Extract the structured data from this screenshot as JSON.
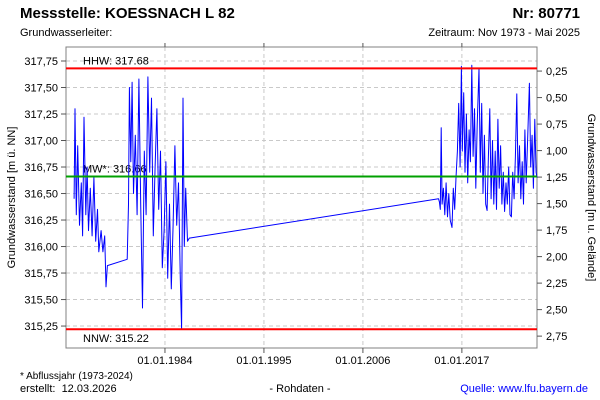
{
  "header": {
    "title": "Messstelle: KOESSNACH L 82",
    "number": "Nr: 80771",
    "aquifer_label": "Grundwasserleiter:",
    "period": "Zeitraum: Nov 1973 - Mai 2025"
  },
  "footer": {
    "footnote": "* Abflussjahr (1973-2024)",
    "created": "erstellt:  12.03.2026",
    "center": "- Rohdaten -",
    "source_label": "Quelle: ",
    "source_url": "www.lfu.bayern.de"
  },
  "chart_data": {
    "type": "line",
    "ylabel_left": "Grundwasserstand [m ü. NN]",
    "ylabel_right": "Grundwasserstand [m u. Gelände]",
    "x_range": [
      1973.0,
      2025.35
    ],
    "y_range_left": [
      315.043,
      317.882
    ],
    "ground_elevation": 317.905,
    "grid": true,
    "colors": {
      "grid": "#c9c9c9",
      "frame": "#808080",
      "tick": "#555555",
      "series": "#0000ff",
      "hhw_nnw": "#ff0000",
      "mw": "#00a000",
      "link": "#0000ff"
    },
    "x_ticks": [
      {
        "year": 1984,
        "label": "01.01.1984"
      },
      {
        "year": 1995,
        "label": "01.01.1995"
      },
      {
        "year": 2006,
        "label": "01.01.2006"
      },
      {
        "year": 2017,
        "label": "01.01.2017"
      }
    ],
    "y_ticks_left": [
      {
        "value": 317.75,
        "label": "317,75"
      },
      {
        "value": 317.5,
        "label": "317,50"
      },
      {
        "value": 317.25,
        "label": "317,25"
      },
      {
        "value": 317.0,
        "label": "317,00"
      },
      {
        "value": 316.75,
        "label": "316,75"
      },
      {
        "value": 316.5,
        "label": "316,50"
      },
      {
        "value": 316.25,
        "label": "316,25"
      },
      {
        "value": 316.0,
        "label": "316,00"
      },
      {
        "value": 315.75,
        "label": "315,75"
      },
      {
        "value": 315.5,
        "label": "315,50"
      },
      {
        "value": 315.25,
        "label": "315,25"
      }
    ],
    "y_ticks_right": [
      {
        "depth": 0.25,
        "label": "0,25"
      },
      {
        "depth": 0.5,
        "label": "0,50"
      },
      {
        "depth": 0.75,
        "label": "0,75"
      },
      {
        "depth": 1.0,
        "label": "1,00"
      },
      {
        "depth": 1.25,
        "label": "1,25"
      },
      {
        "depth": 1.5,
        "label": "1,50"
      },
      {
        "depth": 1.75,
        "label": "1,75"
      },
      {
        "depth": 2.0,
        "label": "2,00"
      },
      {
        "depth": 2.25,
        "label": "2,25"
      },
      {
        "depth": 2.5,
        "label": "2,50"
      },
      {
        "depth": 2.75,
        "label": "2,75"
      }
    ],
    "reference_lines": [
      {
        "name": "HHW",
        "label": "HHW: 317.68",
        "value": 317.68,
        "color": "#ff0000",
        "label_position": "above"
      },
      {
        "name": "MW",
        "label": "MW*: 316.66",
        "value": 316.66,
        "color": "#00a000",
        "label_position": "above"
      },
      {
        "name": "NNW",
        "label": "NNW: 315.22",
        "value": 315.22,
        "color": "#ff0000",
        "label_position": "below"
      }
    ],
    "series": [
      {
        "name": "Grundwasserstand Rohdaten",
        "color": "#0000ff",
        "points": [
          [
            1973.9,
            316.45
          ],
          [
            1974.0,
            317.3
          ],
          [
            1974.15,
            316.3
          ],
          [
            1974.3,
            316.95
          ],
          [
            1974.5,
            316.2
          ],
          [
            1974.7,
            316.6
          ],
          [
            1974.85,
            316.1
          ],
          [
            1975.0,
            317.22
          ],
          [
            1975.2,
            316.3
          ],
          [
            1975.35,
            316.75
          ],
          [
            1975.5,
            316.15
          ],
          [
            1975.7,
            316.55
          ],
          [
            1975.9,
            316.1
          ],
          [
            1976.1,
            316.65
          ],
          [
            1976.3,
            316.05
          ],
          [
            1976.5,
            316.35
          ],
          [
            1976.65,
            315.95
          ],
          [
            1976.9,
            316.15
          ],
          [
            1977.1,
            315.95
          ],
          [
            1977.3,
            316.1
          ],
          [
            1977.45,
            315.62
          ],
          [
            1977.6,
            315.82
          ],
          [
            1979.8,
            315.88
          ],
          [
            1979.95,
            316.4
          ],
          [
            1980.05,
            317.5
          ],
          [
            1980.2,
            316.8
          ],
          [
            1980.35,
            317.55
          ],
          [
            1980.5,
            316.5
          ],
          [
            1980.7,
            317.05
          ],
          [
            1980.9,
            316.3
          ],
          [
            1981.1,
            317.58
          ],
          [
            1981.3,
            316.4
          ],
          [
            1981.5,
            315.42
          ],
          [
            1981.7,
            316.9
          ],
          [
            1981.9,
            316.3
          ],
          [
            1982.1,
            317.6
          ],
          [
            1982.3,
            316.7
          ],
          [
            1982.5,
            317.4
          ],
          [
            1982.7,
            316.1
          ],
          [
            1982.9,
            316.75
          ],
          [
            1983.1,
            317.3
          ],
          [
            1983.3,
            316.35
          ],
          [
            1983.5,
            316.9
          ],
          [
            1983.7,
            315.8
          ],
          [
            1983.9,
            316.15
          ],
          [
            1984.1,
            316.8
          ],
          [
            1984.3,
            315.7
          ],
          [
            1984.5,
            316.4
          ],
          [
            1984.7,
            315.6
          ],
          [
            1984.9,
            316.2
          ],
          [
            1985.1,
            316.95
          ],
          [
            1985.3,
            316.2
          ],
          [
            1985.5,
            316.6
          ],
          [
            1985.7,
            315.7
          ],
          [
            1985.85,
            315.22
          ],
          [
            1986.0,
            317.4
          ],
          [
            1986.15,
            316.0
          ],
          [
            1986.3,
            316.55
          ],
          [
            1986.5,
            316.05
          ],
          [
            1986.7,
            316.08
          ],
          [
            2014.4,
            316.45
          ],
          [
            2014.5,
            316.42
          ],
          [
            2014.6,
            316.35
          ],
          [
            2014.7,
            317.12
          ],
          [
            2014.8,
            316.4
          ],
          [
            2014.95,
            316.55
          ],
          [
            2015.1,
            316.3
          ],
          [
            2015.25,
            316.6
          ],
          [
            2015.4,
            316.28
          ],
          [
            2015.55,
            316.5
          ],
          [
            2015.7,
            316.25
          ],
          [
            2015.9,
            316.18
          ],
          [
            2016.05,
            316.55
          ],
          [
            2016.2,
            316.35
          ],
          [
            2016.35,
            316.65
          ],
          [
            2016.5,
            316.9
          ],
          [
            2016.65,
            317.35
          ],
          [
            2016.8,
            316.75
          ],
          [
            2016.95,
            317.7
          ],
          [
            2017.05,
            316.9
          ],
          [
            2017.2,
            317.45
          ],
          [
            2017.35,
            316.7
          ],
          [
            2017.5,
            317.25
          ],
          [
            2017.65,
            316.6
          ],
          [
            2017.8,
            317.1
          ],
          [
            2017.95,
            316.8
          ],
          [
            2018.1,
            317.71
          ],
          [
            2018.25,
            316.85
          ],
          [
            2018.4,
            317.3
          ],
          [
            2018.55,
            316.55
          ],
          [
            2018.7,
            317.15
          ],
          [
            2018.9,
            317.68
          ],
          [
            2019.05,
            316.7
          ],
          [
            2019.2,
            317.35
          ],
          [
            2019.35,
            316.5
          ],
          [
            2019.5,
            317.05
          ],
          [
            2019.65,
            316.4
          ],
          [
            2019.8,
            316.34
          ],
          [
            2019.95,
            316.85
          ],
          [
            2020.1,
            317.3
          ],
          [
            2020.25,
            316.45
          ],
          [
            2020.4,
            317.0
          ],
          [
            2020.55,
            316.4
          ],
          [
            2020.7,
            316.9
          ],
          [
            2020.85,
            316.35
          ],
          [
            2021.0,
            317.2
          ],
          [
            2021.15,
            316.55
          ],
          [
            2021.3,
            316.95
          ],
          [
            2021.45,
            316.4
          ],
          [
            2021.6,
            316.7
          ],
          [
            2021.75,
            316.33
          ],
          [
            2021.9,
            316.6
          ],
          [
            2022.05,
            316.4
          ],
          [
            2022.2,
            316.75
          ],
          [
            2022.35,
            316.3
          ],
          [
            2022.5,
            316.28
          ],
          [
            2022.65,
            316.7
          ],
          [
            2022.8,
            316.45
          ],
          [
            2022.95,
            316.85
          ],
          [
            2023.1,
            317.44
          ],
          [
            2023.25,
            316.6
          ],
          [
            2023.4,
            316.95
          ],
          [
            2023.55,
            316.45
          ],
          [
            2023.7,
            316.8
          ],
          [
            2023.85,
            316.4
          ],
          [
            2024.0,
            317.1
          ],
          [
            2024.15,
            316.6
          ],
          [
            2024.3,
            317.0
          ],
          [
            2024.5,
            317.54
          ],
          [
            2024.65,
            316.75
          ],
          [
            2024.8,
            317.05
          ],
          [
            2024.95,
            316.55
          ],
          [
            2025.1,
            317.2
          ],
          [
            2025.25,
            316.7
          ],
          [
            2025.35,
            316.65
          ]
        ]
      }
    ]
  }
}
